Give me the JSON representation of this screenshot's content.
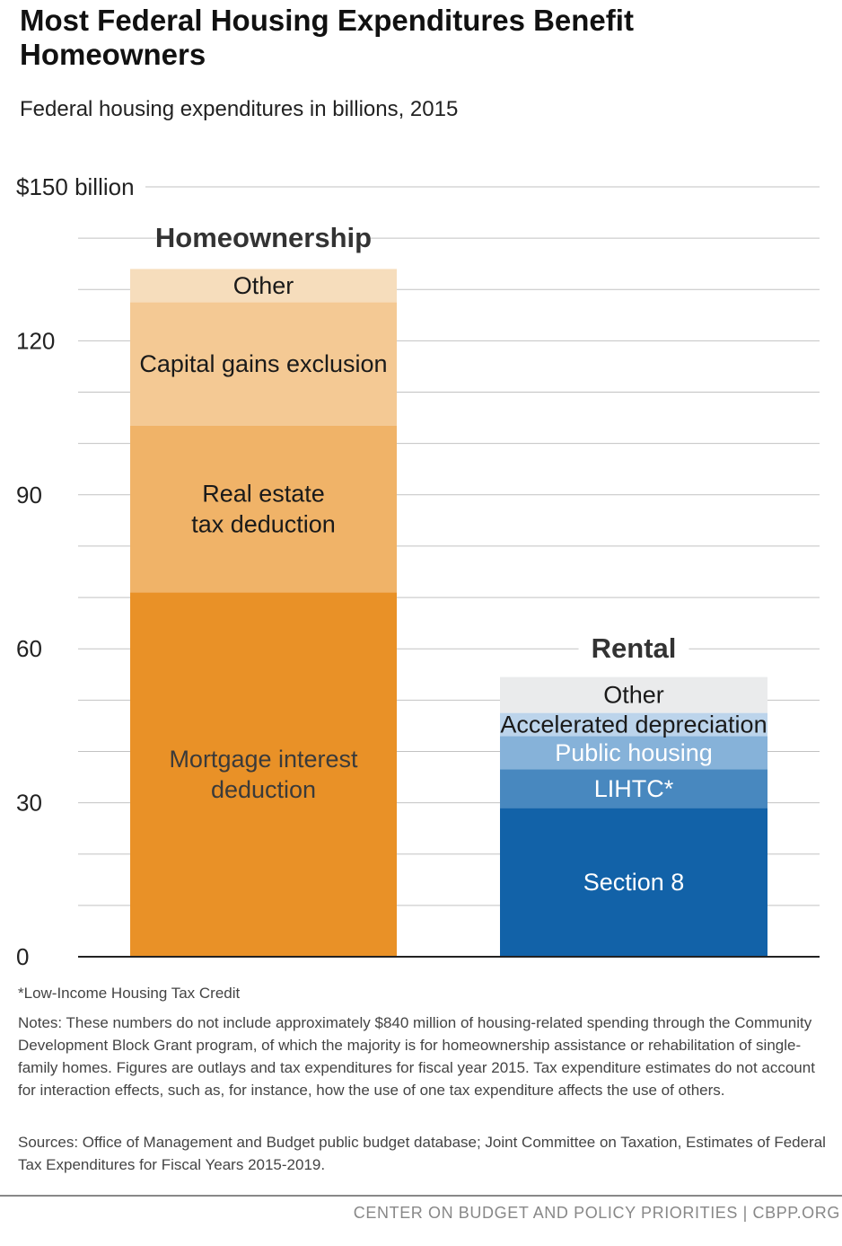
{
  "title": "Most Federal Housing Expenditures Benefit Homeowners",
  "subtitle": "Federal housing expenditures in billions, 2015",
  "footnote_lihtc": "*Low-Income Housing Tax Credit",
  "notes": "Notes: These numbers do not include approximately $840 million of housing-related spending through the Community Development Block Grant program, of which the majority is for homeownership assistance or rehabilitation of single-family homes.  Figures are outlays and tax expenditures for fiscal year 2015.  Tax expenditure estimates do not account for interaction effects, such as, for instance, how the use of one tax expenditure affects the use of others.",
  "sources": "Sources: Office of Management and Budget public budget database; Joint Committee on Taxation, Estimates of Federal Tax Expenditures for Fiscal Years 2015-2019.",
  "credit": "CENTER ON BUDGET AND POLICY PRIORITIES | CBPP.ORG",
  "chart_data": {
    "type": "bar",
    "stacked": true,
    "ylim": [
      0,
      150
    ],
    "ytick_values": [
      0,
      30,
      60,
      90,
      120,
      150
    ],
    "ytick_labels": [
      "0",
      "30",
      "60",
      "90",
      "120",
      "$150 billion"
    ],
    "minor_gridlines_every": 10,
    "grid": true,
    "categories": [
      "Homeownership",
      "Rental"
    ],
    "stacks": [
      {
        "category": "Homeownership",
        "segments": [
          {
            "label": [
              "Mortgage interest",
              "deduction"
            ],
            "value": 71,
            "color": "#E99127",
            "text_color": "#3a3a3a"
          },
          {
            "label": [
              "Real estate",
              "tax deduction"
            ],
            "value": 32.5,
            "color": "#F0B368",
            "text_color": "#1a1a1a"
          },
          {
            "label": [
              "Capital gains exclusion"
            ],
            "value": 24,
            "color": "#F4C994",
            "text_color": "#1a1a1a"
          },
          {
            "label": [
              "Other"
            ],
            "value": 6.5,
            "color": "#F6DDBC",
            "text_color": "#1a1a1a"
          }
        ]
      },
      {
        "category": "Rental",
        "segments": [
          {
            "label": [
              "Section 8"
            ],
            "value": 29,
            "color": "#1262A8",
            "text_color": "#ffffff"
          },
          {
            "label": [
              "LIHTC*"
            ],
            "value": 7.5,
            "color": "#4888BF",
            "text_color": "#ffffff"
          },
          {
            "label": [
              "Public housing"
            ],
            "value": 6.5,
            "color": "#86B2D9",
            "text_color": "#ffffff"
          },
          {
            "label": [
              "Accelerated depreciation"
            ],
            "value": 4.5,
            "color": "#BCD4EB",
            "text_color": "#1a1a1a"
          },
          {
            "label": [
              "Other"
            ],
            "value": 7,
            "color": "#EAEBEC",
            "text_color": "#1a1a1a"
          }
        ]
      }
    ]
  }
}
